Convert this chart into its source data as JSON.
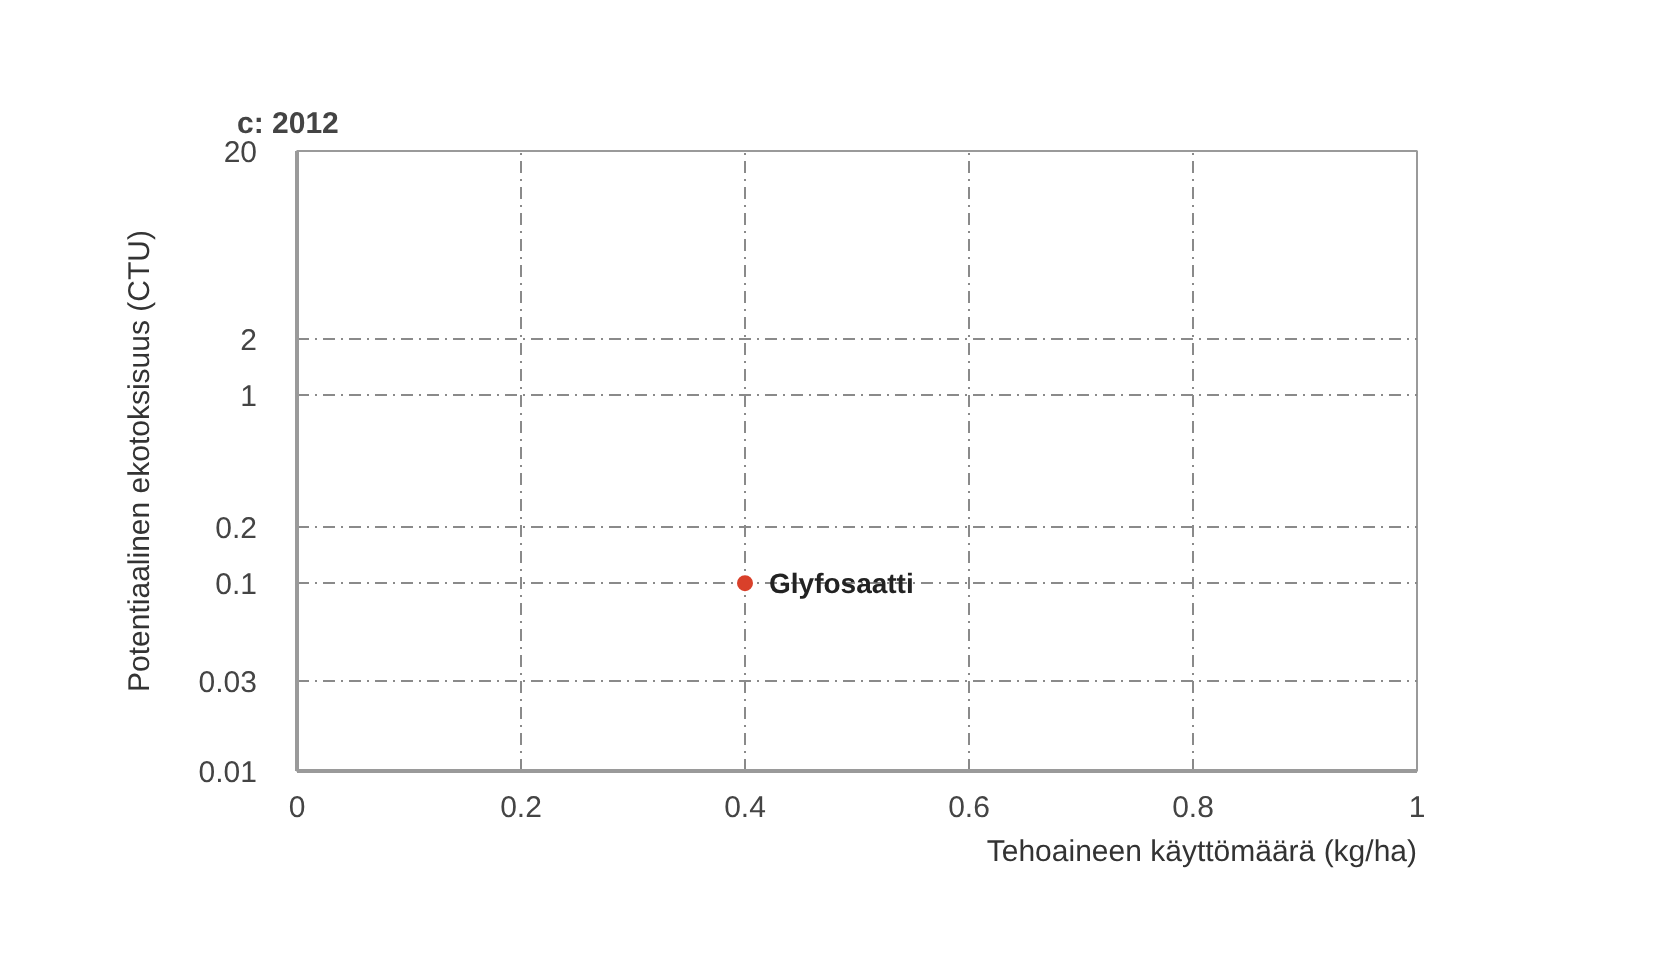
{
  "chart_data": {
    "type": "scatter",
    "title": "c: 2012",
    "xlabel": "Tehoaineen käyttömäärä (kg/ha)",
    "ylabel": "Potentiaalinen ekotoksisuus (CTU)",
    "series": [
      {
        "name": "Glyfosaatti",
        "color": "#d9402a",
        "x": [
          0.4
        ],
        "values": [
          0.1
        ]
      }
    ],
    "xlim": [
      0,
      1
    ],
    "xticks": [
      0,
      0.2,
      0.4,
      0.6,
      0.8,
      1
    ],
    "ylim": [
      0.01,
      20
    ],
    "yticks": [
      0.01,
      0.03,
      0.1,
      0.2,
      1,
      2,
      20
    ],
    "log": "y",
    "grid": true,
    "marker": "circle",
    "legend": false
  }
}
